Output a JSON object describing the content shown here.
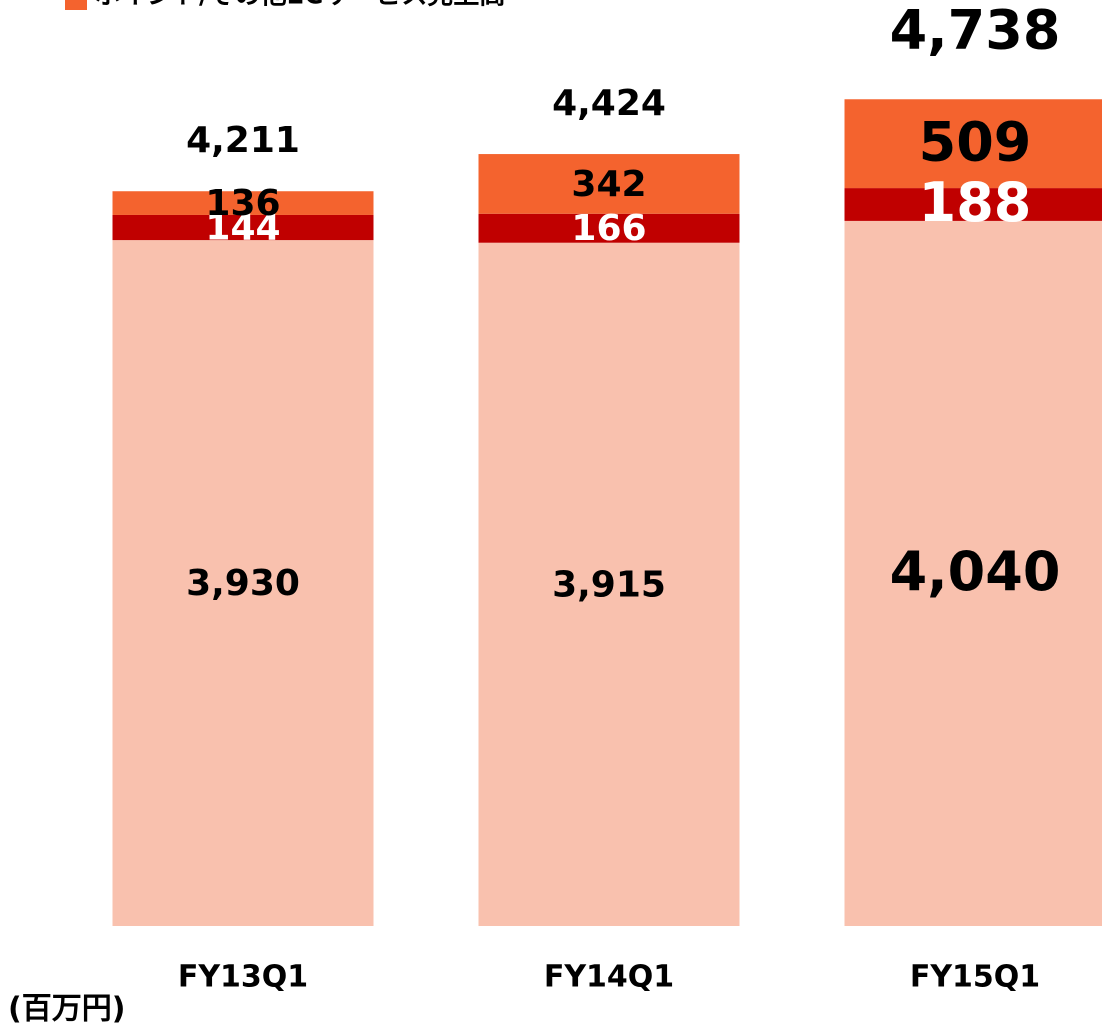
{
  "chart_data": {
    "type": "stacked_bar",
    "legend": "ポイント/その他ECサービス売上高",
    "unit_label": "(百万円)",
    "categories": [
      "FY13Q1",
      "FY14Q1",
      "FY15Q1"
    ],
    "series": [
      {
        "color": "#f9c1ae",
        "values": [
          3930,
          3915,
          4040
        ],
        "value_labels": [
          "3,930",
          "3,915",
          "4,040"
        ],
        "label_color": "#000000"
      },
      {
        "color": "#c00000",
        "values": [
          144,
          166,
          188
        ],
        "value_labels": [
          "144",
          "166",
          "188"
        ],
        "label_color": "#ffffff"
      },
      {
        "name": "ポイント/その他ECサービス売上高",
        "color": "#f4632e",
        "values": [
          136,
          342,
          509
        ],
        "value_labels": [
          "136",
          "342",
          "509"
        ],
        "label_color": "#000000"
      }
    ],
    "totals": [
      4211,
      4424,
      4738
    ],
    "total_labels": [
      "4,211",
      "4,424",
      "4,738"
    ],
    "ylim": [
      0,
      5300
    ]
  }
}
